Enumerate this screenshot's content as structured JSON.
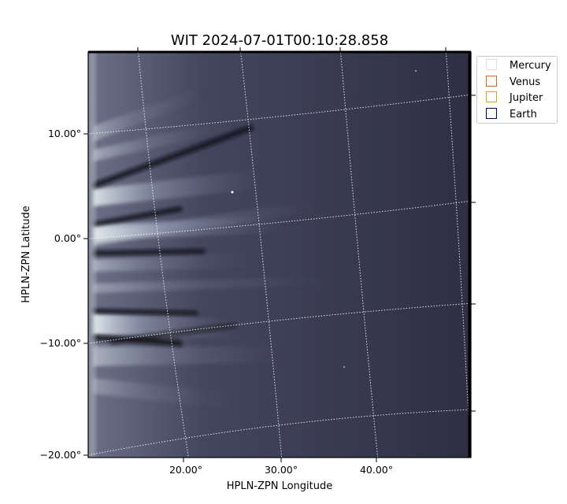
{
  "title": "WIT 2024-07-01T00:10:28.858",
  "xlabel": "HPLN-ZPN Longitude",
  "ylabel": "HPLN-ZPN Latitude",
  "x_tick_labels": [
    "20.00°",
    "30.00°",
    "40.00°"
  ],
  "y_tick_labels": [
    "10.00°",
    "0.00°",
    "−10.00°",
    "−20.00°"
  ],
  "legend": [
    {
      "label": "Mercury",
      "color": "#dddddd"
    },
    {
      "label": "Venus",
      "color": "#d2691e"
    },
    {
      "label": "Jupiter",
      "color": "#daa520"
    },
    {
      "label": "Earth",
      "color": "#000080"
    }
  ],
  "colors": {
    "background_dark": "#2c2d40",
    "streamer_light": "#dfe9ea",
    "grid_line": "#ffffff"
  }
}
